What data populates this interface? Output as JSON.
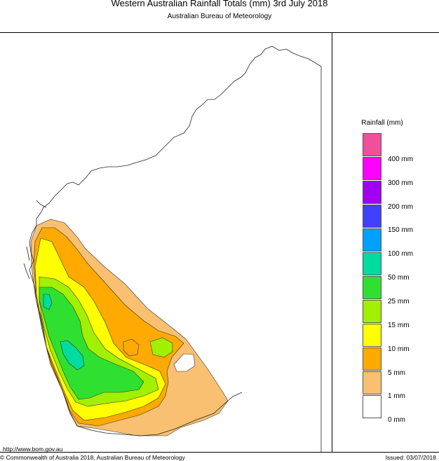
{
  "header": {
    "title": "Western Australian Rainfall Totals (mm) 3rd July 2018",
    "subtitle": "Australian Bureau of Meteorology"
  },
  "legend": {
    "title": "Rainfall (mm)",
    "bins": [
      {
        "label": "",
        "color": "#f0509a"
      },
      {
        "label": "400 mm",
        "color": "#ff00ff"
      },
      {
        "label": "300 mm",
        "color": "#a000f0"
      },
      {
        "label": "200 mm",
        "color": "#4040ff"
      },
      {
        "label": "150 mm",
        "color": "#00a0ff"
      },
      {
        "label": "100 mm",
        "color": "#00dca0"
      },
      {
        "label": "50 mm",
        "color": "#30e030"
      },
      {
        "label": "25 mm",
        "color": "#a0f000"
      },
      {
        "label": "15 mm",
        "color": "#ffff00"
      },
      {
        "label": "10 mm",
        "color": "#ffaa00"
      },
      {
        "label": "5 mm",
        "color": "#f8c070"
      },
      {
        "label": "1 mm",
        "color": "#ffffff"
      },
      {
        "label": "0 mm",
        "color": ""
      }
    ]
  },
  "footer": {
    "url": "http://www.bom.gov.au",
    "copyright": "© Commonwealth of Australia 2018, Australian Bureau of Meteorology",
    "issued": "Issued: 03/07/2018"
  },
  "colors": {
    "rain_1_5": "#f8c070",
    "rain_5_10": "#ffaa00",
    "rain_10_15": "#ffff00",
    "rain_15_25": "#a0f000",
    "rain_25_50": "#30e030",
    "rain_50_100": "#00dca0"
  }
}
